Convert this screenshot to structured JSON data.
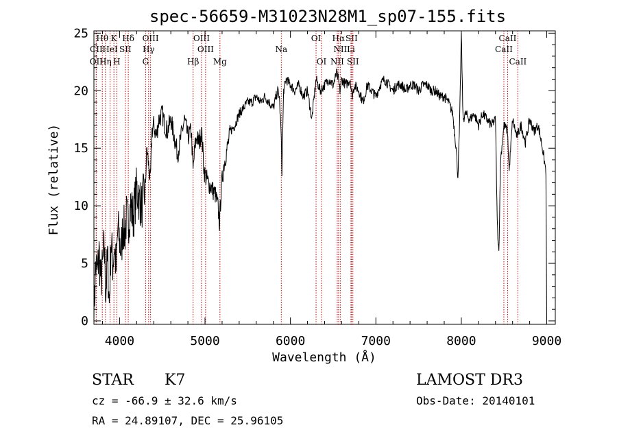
{
  "chart_data": {
    "type": "line",
    "title": "spec-56659-M31023N28M1_sp07-155.fits",
    "xlabel": "Wavelength (Å)",
    "ylabel": "Flux (relative)",
    "xlim": [
      3700,
      9100
    ],
    "ylim": [
      -0.3,
      25.2
    ],
    "xticks": [
      4000,
      5000,
      6000,
      7000,
      8000,
      9000
    ],
    "yticks": [
      0,
      5,
      10,
      15,
      20,
      25
    ],
    "series": [
      {
        "x": [
          3700,
          3720,
          3740,
          3760,
          3780,
          3800,
          3820,
          3840,
          3860,
          3880,
          3900,
          3920,
          3940,
          3960,
          3980,
          4000,
          4020,
          4040,
          4060,
          4080,
          4100,
          4130,
          4160,
          4200,
          4230,
          4260,
          4300,
          4320,
          4340,
          4360,
          4380,
          4400,
          4430,
          4460,
          4500,
          4530,
          4560,
          4600,
          4640,
          4680,
          4720,
          4760,
          4800,
          4840,
          4860,
          4880,
          4900,
          4930,
          4960,
          4990,
          5010,
          5040,
          5080,
          5120,
          5150,
          5170,
          5190,
          5220,
          5260,
          5300,
          5350,
          5400,
          5450,
          5500,
          5550,
          5600,
          5650,
          5700,
          5750,
          5800,
          5850,
          5870,
          5890,
          5900,
          5920,
          5950,
          6000,
          6050,
          6100,
          6150,
          6200,
          6250,
          6300,
          6350,
          6400,
          6450,
          6500,
          6540,
          6560,
          6580,
          6600,
          6650,
          6700,
          6720,
          6750,
          6800,
          6850,
          6900,
          6950,
          7000,
          7050,
          7100,
          7150,
          7200,
          7250,
          7300,
          7350,
          7400,
          7450,
          7500,
          7550,
          7600,
          7650,
          7700,
          7750,
          7800,
          7850,
          7900,
          7940,
          7960,
          7980,
          8000,
          8020,
          8050,
          8100,
          8150,
          8200,
          8250,
          8300,
          8350,
          8400,
          8420,
          8440,
          8460,
          8500,
          8540,
          8560,
          8600,
          8650,
          8700,
          8750,
          8800,
          8850,
          8900,
          8950,
          8990,
          9000
        ],
        "y": [
          0.3,
          5.0,
          4.0,
          6.0,
          3.5,
          4.5,
          6.5,
          2.5,
          5.5,
          1.5,
          7.0,
          5.0,
          6.5,
          4.5,
          8.0,
          7.0,
          6.0,
          8.5,
          7.5,
          9.0,
          8.5,
          10.0,
          9.0,
          11.5,
          10.5,
          10.0,
          11.5,
          15.0,
          13.5,
          12.0,
          16.5,
          17.0,
          16.0,
          17.5,
          18.0,
          17.0,
          16.5,
          17.5,
          16.0,
          14.5,
          16.0,
          17.5,
          16.0,
          16.5,
          13.0,
          15.0,
          16.0,
          15.5,
          16.5,
          13.0,
          12.5,
          12.0,
          11.5,
          11.0,
          10.0,
          8.5,
          11.5,
          13.5,
          15.0,
          16.5,
          17.0,
          18.0,
          18.5,
          19.0,
          19.0,
          19.5,
          19.0,
          19.5,
          19.0,
          18.5,
          20.0,
          19.5,
          16.5,
          13.0,
          20.0,
          21.0,
          20.5,
          20.0,
          20.5,
          19.5,
          20.0,
          17.5,
          21.0,
          20.0,
          20.5,
          21.0,
          20.5,
          21.5,
          21.0,
          20.0,
          21.0,
          20.5,
          21.0,
          19.5,
          20.5,
          20.0,
          19.0,
          20.5,
          20.0,
          19.5,
          20.5,
          21.0,
          20.5,
          20.0,
          20.5,
          20.5,
          20.0,
          20.5,
          20.5,
          20.0,
          20.5,
          20.5,
          20.0,
          20.0,
          19.5,
          19.5,
          19.0,
          18.0,
          15.0,
          12.5,
          17.0,
          25.0,
          17.5,
          18.0,
          17.5,
          18.0,
          17.0,
          18.0,
          17.5,
          17.0,
          17.5,
          8.5,
          6.0,
          14.0,
          17.0,
          16.5,
          13.0,
          17.5,
          16.0,
          17.0,
          15.5,
          17.5,
          16.5,
          17.0,
          15.0,
          13.0,
          0.0
        ]
      }
    ],
    "lines_upper": [
      {
        "label": "Hθ",
        "x": 3798,
        "row": 0
      },
      {
        "label": "K",
        "x": 3934,
        "row": 0
      },
      {
        "label": "Hδ",
        "x": 4102,
        "row": 0
      },
      {
        "label": "OIII",
        "x": 4363,
        "row": 0
      },
      {
        "label": "OIII",
        "x": 4959,
        "row": 0
      },
      {
        "label": "OI",
        "x": 6300,
        "row": 0
      },
      {
        "label": "Hα",
        "x": 6563,
        "row": 0
      },
      {
        "label": "SII",
        "x": 6716,
        "row": 0
      },
      {
        "label": "CaII",
        "x": 8542,
        "row": 0
      },
      {
        "label": "CII",
        "x": 3727,
        "row": 1
      },
      {
        "label": "HeI",
        "x": 3889,
        "row": 1
      },
      {
        "label": "SII",
        "x": 4068,
        "row": 1
      },
      {
        "label": "Hγ",
        "x": 4340,
        "row": 1
      },
      {
        "label": "OIII",
        "x": 5007,
        "row": 1
      },
      {
        "label": "Na",
        "x": 5893,
        "row": 1
      },
      {
        "label": "NII",
        "x": 6583,
        "row": 1
      },
      {
        "label": "Li",
        "x": 6708,
        "row": 1
      },
      {
        "label": "CaII",
        "x": 8498,
        "row": 1
      },
      {
        "label": "OII",
        "x": 3727,
        "row": 2
      },
      {
        "label": "Hη",
        "x": 3835,
        "row": 2
      },
      {
        "label": "H",
        "x": 3968,
        "row": 2
      },
      {
        "label": "G",
        "x": 4305,
        "row": 2
      },
      {
        "label": "Hβ",
        "x": 4861,
        "row": 2
      },
      {
        "label": "Mg",
        "x": 5175,
        "row": 2
      },
      {
        "label": "OI",
        "x": 6364,
        "row": 2
      },
      {
        "label": "NII",
        "x": 6548,
        "row": 2
      },
      {
        "label": "SII",
        "x": 6731,
        "row": 2
      },
      {
        "label": "CaII",
        "x": 8662,
        "row": 2
      }
    ],
    "line_color": "#cc0000"
  },
  "info": {
    "object_class": "STAR",
    "subclass": "K7",
    "survey": "LAMOST DR3",
    "cz": "cz = -66.9 ± 32.6 km/s",
    "obs_date": "Obs-Date: 20140101",
    "coords": "RA =  24.89107, DEC =  25.96105"
  }
}
